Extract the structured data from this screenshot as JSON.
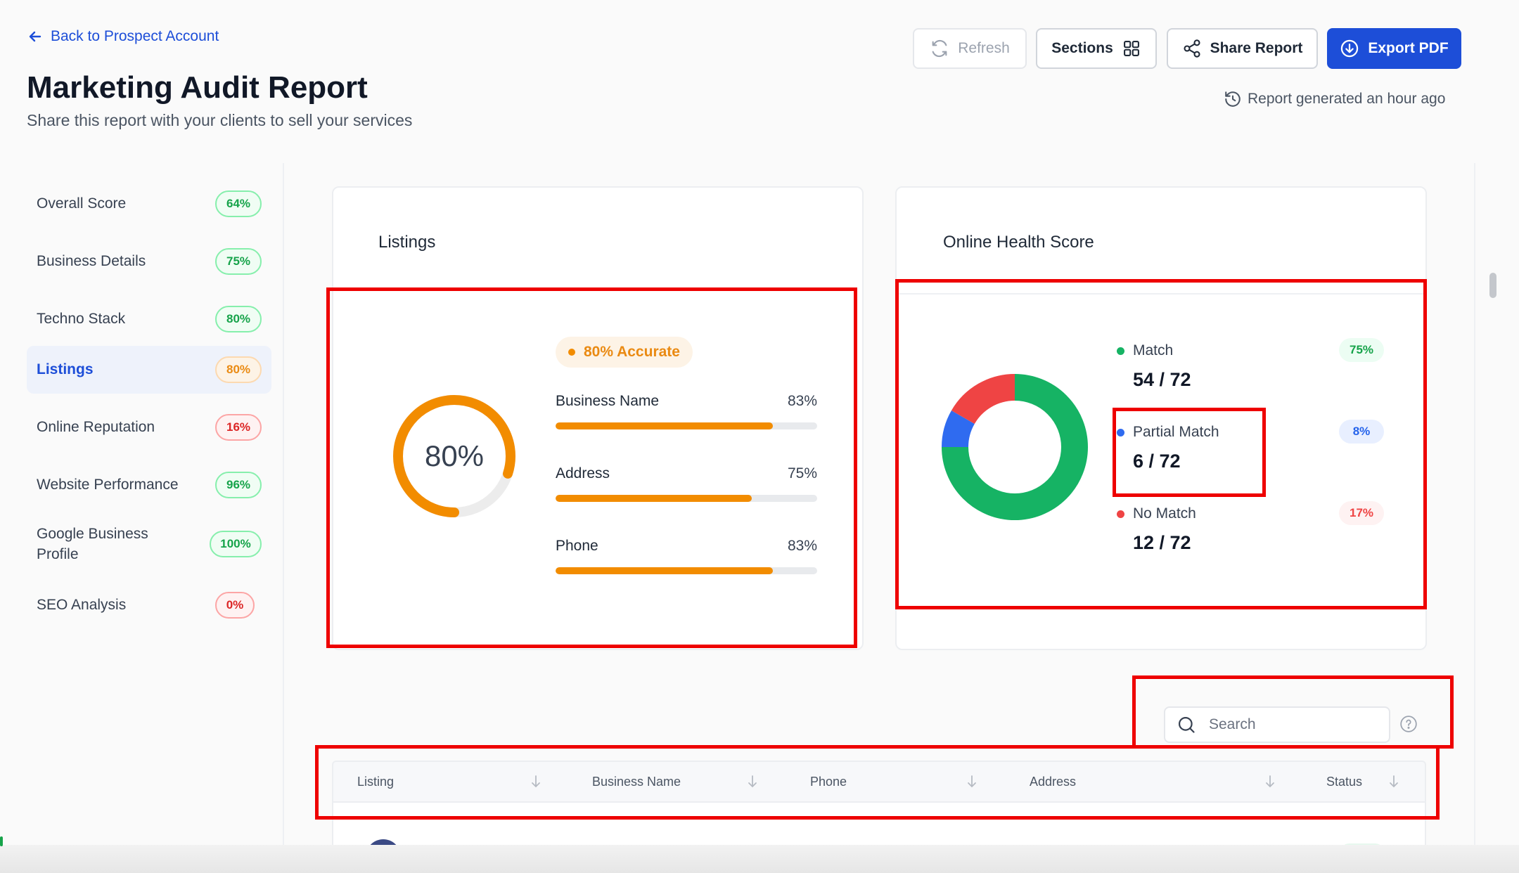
{
  "header": {
    "back_label": "Back to Prospect Account",
    "title": "Marketing Audit Report",
    "subtitle": "Share this report with your clients to sell your services",
    "generated_text": "Report generated an hour ago"
  },
  "toolbar": {
    "refresh_label": "Refresh",
    "sections_label": "Sections",
    "share_label": "Share Report",
    "export_label": "Export PDF"
  },
  "sidebar": {
    "items": [
      {
        "label": "Overall Score",
        "score": "64%"
      },
      {
        "label": "Business Details",
        "score": "75%"
      },
      {
        "label": "Techno Stack",
        "score": "80%"
      },
      {
        "label": "Listings",
        "score": "80%"
      },
      {
        "label": "Online Reputation",
        "score": "16%"
      },
      {
        "label": "Website Performance",
        "score": "96%"
      },
      {
        "label": "Google Business Profile",
        "score": "100%"
      },
      {
        "label": "SEO Analysis",
        "score": "0%"
      }
    ]
  },
  "listings": {
    "title": "Listings",
    "score_label": "80%",
    "score_value": 0.8,
    "accuracy_label": "80% Accurate",
    "metrics": [
      {
        "label": "Business Name",
        "value": "83%",
        "fraction": 0.83
      },
      {
        "label": "Address",
        "value": "75%",
        "fraction": 0.75
      },
      {
        "label": "Phone",
        "value": "83%",
        "fraction": 0.83
      }
    ]
  },
  "health": {
    "title": "Online Health Score",
    "legend": [
      {
        "label": "Match",
        "count": "54 / 72",
        "pct": "75%",
        "color": "#16b364",
        "value": 54
      },
      {
        "label": "Partial Match",
        "count": "6 / 72",
        "pct": "8%",
        "color": "#2f6bf0",
        "value": 6
      },
      {
        "label": "No Match",
        "count": "12 / 72",
        "pct": "17%",
        "color": "#ef4444",
        "value": 12
      }
    ]
  },
  "search": {
    "placeholder": "Search"
  },
  "table": {
    "columns": [
      "Listing",
      "Business Name",
      "Phone",
      "Address",
      "Status"
    ]
  },
  "colors": {
    "accent": "#1d4ed8",
    "orange": "#f28c00",
    "annotation": "#ee0000"
  }
}
